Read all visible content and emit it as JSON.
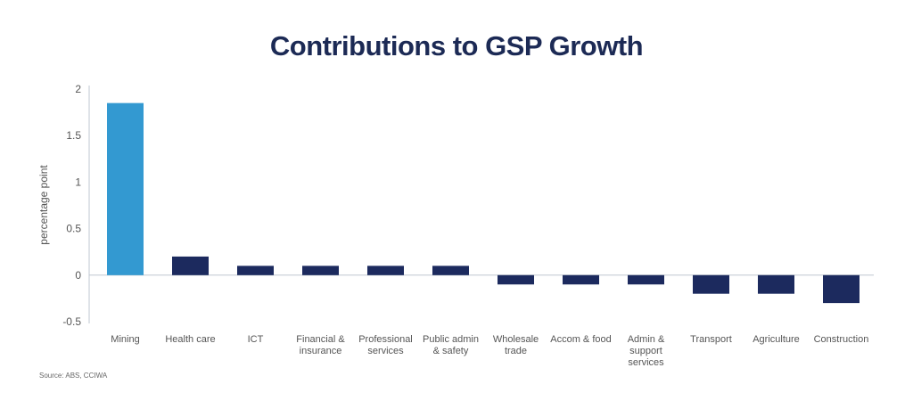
{
  "chart_data": {
    "type": "bar",
    "title": "Contributions to GSP Growth",
    "ylabel": "percentage point",
    "xlabel": "",
    "ylim": [
      -0.5,
      2
    ],
    "yticks": [
      "2",
      "1.5",
      "1",
      "0.5",
      "0",
      "-0.5"
    ],
    "ytick_values": [
      2,
      1.5,
      1,
      0.5,
      0,
      -0.5
    ],
    "grid": false,
    "categories": [
      [
        "Mining"
      ],
      [
        "Health care"
      ],
      [
        "ICT"
      ],
      [
        "Financial &",
        "insurance"
      ],
      [
        "Professional",
        "services"
      ],
      [
        "Public admin",
        "& safety"
      ],
      [
        "Wholesale",
        "trade"
      ],
      [
        "Accom & food"
      ],
      [
        "Admin &",
        "support",
        "services"
      ],
      [
        "Transport"
      ],
      [
        "Agriculture"
      ],
      [
        "Construction"
      ]
    ],
    "values": [
      1.85,
      0.2,
      0.1,
      0.1,
      0.1,
      0.1,
      -0.1,
      -0.1,
      -0.1,
      -0.2,
      -0.2,
      -0.3
    ],
    "colors": {
      "highlight": "#3399d1",
      "default": "#1c2a5e",
      "axis": "#bfc7d0",
      "tick_text": "#555555"
    },
    "highlight_index": 0
  },
  "source": "Source: ABS, CCIWA"
}
